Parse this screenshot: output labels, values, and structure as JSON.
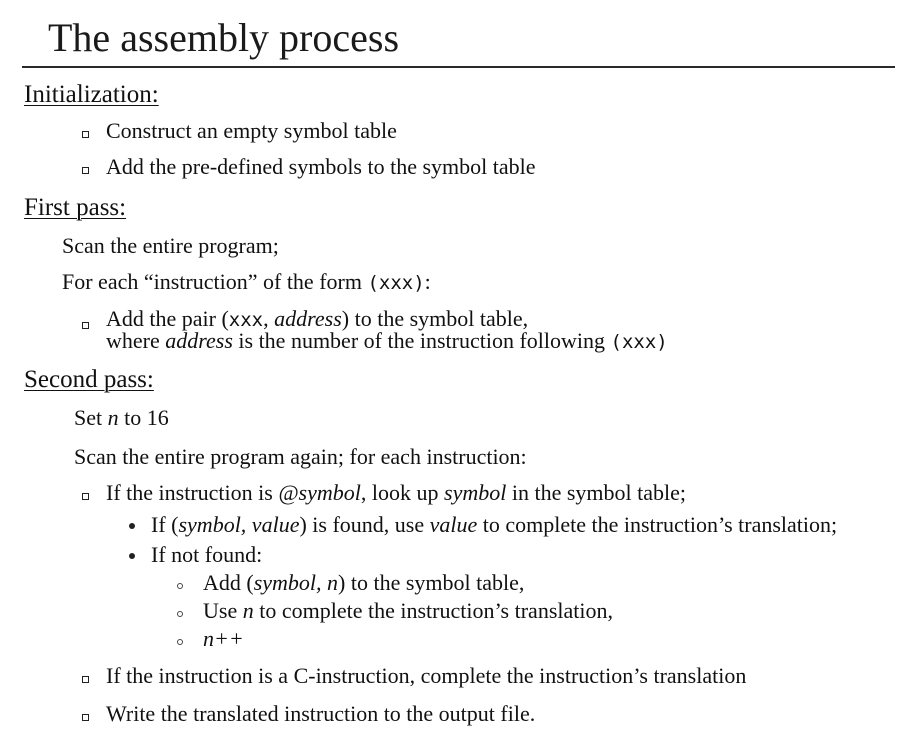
{
  "title": "The assembly process",
  "sections": {
    "init": {
      "heading": "Initialization:",
      "items": [
        "Construct an empty symbol table",
        "Add the pre-defined symbols to the symbol table"
      ]
    },
    "first": {
      "heading": "First pass:",
      "line1": "Scan the entire program;",
      "line2_prefix": "For each “instruction” of the form ",
      "line2_code": "(xxx)",
      "line2_suffix": ":",
      "bullet_a1": "Add the pair (",
      "bullet_a_code1": "xxx",
      "bullet_a2": ", ",
      "bullet_a_italic1": "address",
      "bullet_a3": ") to the symbol table,",
      "bullet_b1": "where ",
      "bullet_b_italic": "address",
      "bullet_b2": " is the number of the instruction following ",
      "bullet_b_code": "(xxx)"
    },
    "second": {
      "heading": "Second pass:",
      "set_prefix": "Set ",
      "set_var": "n",
      "set_suffix": " to 16",
      "scan": "Scan the entire program again; for each instruction:",
      "item1_prefix": "If the instruction is ",
      "item1_italic1": "@symbol",
      "item1_mid": ", look up ",
      "item1_italic2": "symbol",
      "item1_suffix": " in the symbol table;",
      "sub1_prefix": "If (",
      "sub1_italic1": "symbol, value",
      "sub1_mid": ") is found, use ",
      "sub1_italic2": "value",
      "sub1_suffix": " to complete the instruction’s translation;",
      "sub2": "If not found:",
      "subsub1_prefix": "Add (",
      "subsub1_italic": "symbol, n",
      "subsub1_suffix": ") to the symbol table,",
      "subsub2_prefix": "Use ",
      "subsub2_italic": "n",
      "subsub2_suffix": " to complete the instruction’s translation,",
      "subsub3": "n++",
      "item2": "If the instruction is a C-instruction, complete the instruction’s translation",
      "item3": "Write the translated instruction to the output file."
    }
  }
}
